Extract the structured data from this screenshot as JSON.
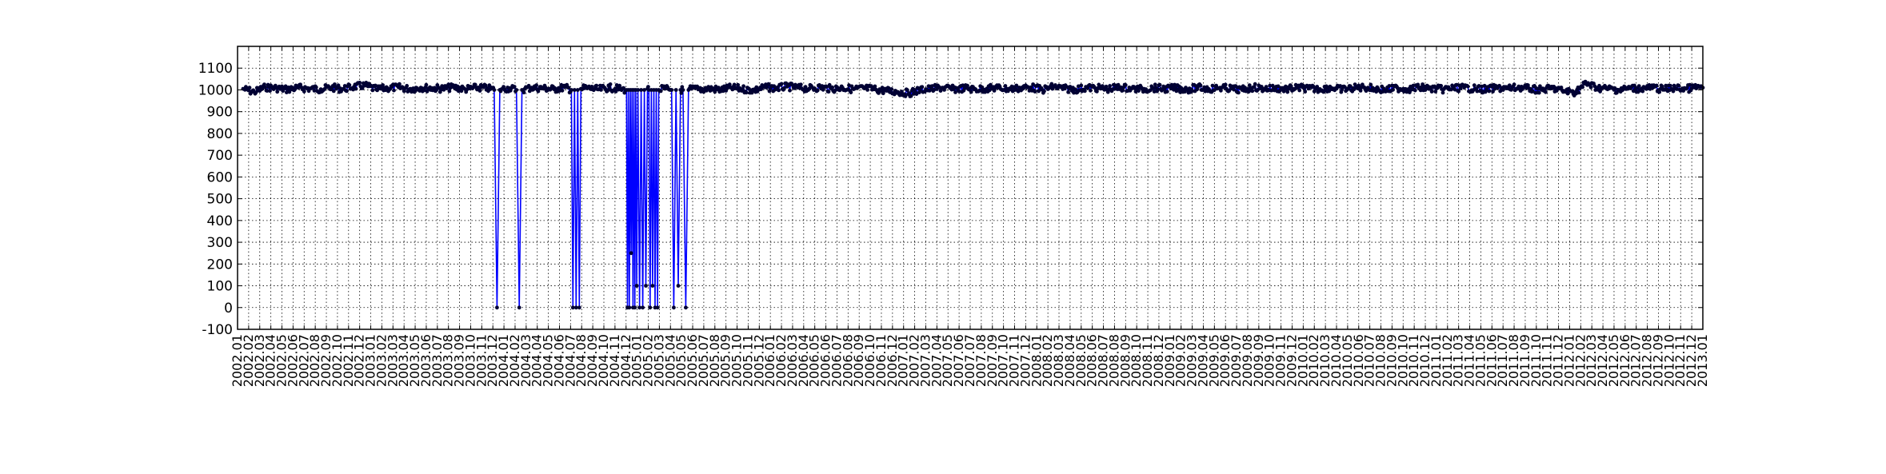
{
  "chart_data": {
    "type": "line",
    "title": "",
    "xlabel": "",
    "ylabel": "",
    "ylim": [
      -100,
      1200
    ],
    "xlim": [
      "2002.01",
      "2013.01"
    ],
    "grid": true,
    "legend": "none",
    "line_color": "#0000ff",
    "marker_color": "#000033",
    "yticks": [
      "-100",
      "0",
      "100",
      "200",
      "300",
      "400",
      "500",
      "600",
      "700",
      "800",
      "900",
      "1000",
      "1100"
    ],
    "xticks": [
      "2002.01",
      "2002.02",
      "2002.03",
      "2002.04",
      "2002.05",
      "2002.06",
      "2002.07",
      "2002.08",
      "2002.09",
      "2002.10",
      "2002.11",
      "2002.12",
      "2003.01",
      "2003.02",
      "2003.03",
      "2003.04",
      "2003.05",
      "2003.06",
      "2003.07",
      "2003.08",
      "2003.09",
      "2003.10",
      "2003.11",
      "2003.12",
      "2004.01",
      "2004.02",
      "2004.03",
      "2004.04",
      "2004.05",
      "2004.06",
      "2004.07",
      "2004.08",
      "2004.09",
      "2004.10",
      "2004.11",
      "2004.12",
      "2005.01",
      "2005.02",
      "2005.03",
      "2005.04",
      "2005.05",
      "2005.06",
      "2005.07",
      "2005.08",
      "2005.09",
      "2005.10",
      "2005.11",
      "2005.12",
      "2006.01",
      "2006.02",
      "2006.03",
      "2006.04",
      "2006.05",
      "2006.06",
      "2006.07",
      "2006.08",
      "2006.09",
      "2006.10",
      "2006.11",
      "2006.12",
      "2007.01",
      "2007.02",
      "2007.03",
      "2007.04",
      "2007.05",
      "2007.06",
      "2007.07",
      "2007.08",
      "2007.09",
      "2007.10",
      "2007.11",
      "2007.12",
      "2008.01",
      "2008.02",
      "2008.03",
      "2008.04",
      "2008.05",
      "2008.06",
      "2008.07",
      "2008.08",
      "2008.09",
      "2008.10",
      "2008.11",
      "2008.12",
      "2009.01",
      "2009.02",
      "2009.03",
      "2009.04",
      "2009.05",
      "2009.06",
      "2009.07",
      "2009.08",
      "2009.09",
      "2009.10",
      "2009.11",
      "2009.12",
      "2010.01",
      "2010.02",
      "2010.03",
      "2010.04",
      "2010.05",
      "2010.06",
      "2010.07",
      "2010.08",
      "2010.09",
      "2010.10",
      "2010.11",
      "2010.12",
      "2011.01",
      "2011.02",
      "2011.03",
      "2011.04",
      "2011.05",
      "2011.06",
      "2011.07",
      "2011.08",
      "2011.09",
      "2011.10",
      "2011.11",
      "2011.12",
      "2012.01",
      "2012.02",
      "2012.03",
      "2012.04",
      "2012.05",
      "2012.06",
      "2012.07",
      "2012.08",
      "2012.09",
      "2012.10",
      "2012.11",
      "2012.12",
      "2013.01"
    ],
    "series": [
      {
        "x": [
          "2002.01",
          "2002.02",
          "2002.03",
          "2002.04",
          "2002.05",
          "2002.06",
          "2002.07",
          "2002.08",
          "2002.09",
          "2002.10",
          "2002.11",
          "2002.12",
          "2003.01",
          "2003.02",
          "2003.03",
          "2003.04",
          "2003.05",
          "2003.06",
          "2003.07",
          "2003.08",
          "2003.09",
          "2003.10",
          "2003.11",
          "2003.12",
          "2003.12",
          "2003.12",
          "2003.12",
          "2004.01",
          "2004.02",
          "2004.02",
          "2004.02",
          "2004.02",
          "2004.03",
          "2004.04",
          "2004.05",
          "2004.06",
          "2004.07",
          "2004.07",
          "2004.07",
          "2004.07",
          "2004.07",
          "2004.07",
          "2004.07",
          "2004.08",
          "2004.09",
          "2004.10",
          "2004.11",
          "2004.12",
          "2004.12",
          "2004.12",
          "2004.12",
          "2004.12",
          "2004.12",
          "2004.12",
          "2004.12",
          "2004.12",
          "2004.12",
          "2004.12",
          "2004.12",
          "2005.01",
          "2005.01",
          "2005.01",
          "2005.01",
          "2005.01",
          "2005.01",
          "2005.01",
          "2005.02",
          "2005.02",
          "2005.02",
          "2005.02",
          "2005.02",
          "2005.02",
          "2005.02",
          "2005.02",
          "2005.02",
          "2005.03",
          "2005.04",
          "2005.04",
          "2005.04",
          "2005.04",
          "2005.04",
          "2005.05",
          "2005.05",
          "2005.05",
          "2005.05",
          "2005.06",
          "2005.07",
          "2005.08",
          "2005.09",
          "2005.10",
          "2005.11",
          "2005.12",
          "2006.01",
          "2006.02",
          "2006.03",
          "2006.04",
          "2006.05",
          "2006.06",
          "2006.07",
          "2006.08",
          "2006.09",
          "2006.10",
          "2006.11",
          "2006.12",
          "2007.01",
          "2007.02",
          "2007.03",
          "2007.04",
          "2007.05",
          "2007.06",
          "2007.07",
          "2007.08",
          "2007.09",
          "2007.10",
          "2007.11",
          "2007.12",
          "2008.01",
          "2008.02",
          "2008.03",
          "2008.04",
          "2008.05",
          "2008.06",
          "2008.07",
          "2008.08",
          "2008.09",
          "2008.10",
          "2008.11",
          "2008.12",
          "2009.01",
          "2009.02",
          "2009.03",
          "2009.04",
          "2009.05",
          "2009.06",
          "2009.07",
          "2009.08",
          "2009.09",
          "2009.10",
          "2009.11",
          "2009.12",
          "2010.01",
          "2010.02",
          "2010.03",
          "2010.04",
          "2010.05",
          "2010.06",
          "2010.07",
          "2010.08",
          "2010.09",
          "2010.10",
          "2010.11",
          "2010.12",
          "2011.01",
          "2011.02",
          "2011.03",
          "2011.04",
          "2011.05",
          "2011.06",
          "2011.07",
          "2011.08",
          "2011.09",
          "2011.10",
          "2011.11",
          "2011.12",
          "2012.01",
          "2012.02",
          "2012.03",
          "2012.04",
          "2012.05",
          "2012.06",
          "2012.07",
          "2012.08",
          "2012.09",
          "2012.10",
          "2012.11",
          "2012.12",
          "2013.01"
        ],
        "values": [
          1005,
          990,
          1012,
          1008,
          1002,
          1010,
          1006,
          1003,
          1011,
          1004,
          1015,
          1020,
          1002,
          1008,
          1012,
          1004,
          1010,
          1008,
          1006,
          1012,
          1003,
          1010,
          1008,
          1000,
          0,
          1000,
          1005,
          1008,
          1000,
          0,
          1000,
          1005,
          1010,
          1008,
          1003,
          1012,
          1000,
          0,
          1000,
          0,
          1000,
          0,
          1005,
          1008,
          1002,
          1010,
          1004,
          1000,
          0,
          1000,
          0,
          1000,
          250,
          1000,
          0,
          1000,
          0,
          1000,
          100,
          1000,
          0,
          1000,
          0,
          1000,
          100,
          1005,
          1000,
          0,
          1000,
          100,
          1000,
          0,
          1000,
          0,
          1000,
          1005,
          1000,
          0,
          1000,
          100,
          1000,
          1000,
          0,
          1000,
          1005,
          1002,
          1006,
          1000,
          1010,
          1004,
          998,
          1012,
          1008,
          1015,
          1010,
          1006,
          1012,
          1005,
          1010,
          1003,
          1008,
          1002,
          996,
          990,
          985,
          1000,
          1005,
          1010,
          1003,
          1008,
          1002,
          1006,
          1010,
          1004,
          1008,
          1012,
          1000,
          1015,
          1006,
          1002,
          1010,
          1008,
          1004,
          1012,
          1006,
          1003,
          1009,
          1005,
          1008,
          1002,
          1011,
          1004,
          1010,
          1006,
          1000,
          1012,
          1005,
          1008,
          1003,
          1010,
          1006,
          1004,
          1010,
          1002,
          1008,
          1012,
          1005,
          1000,
          1009,
          1004,
          1011,
          1006,
          1003,
          1008,
          1010,
          1005,
          1002,
          1009,
          1006,
          1012,
          1004,
          1000,
          1008,
          995,
          990,
          1030,
          1010,
          1005,
          1000,
          1008,
          1006,
          1010,
          1003,
          1009,
          1005,
          1012,
          1010
        ]
      }
    ]
  }
}
